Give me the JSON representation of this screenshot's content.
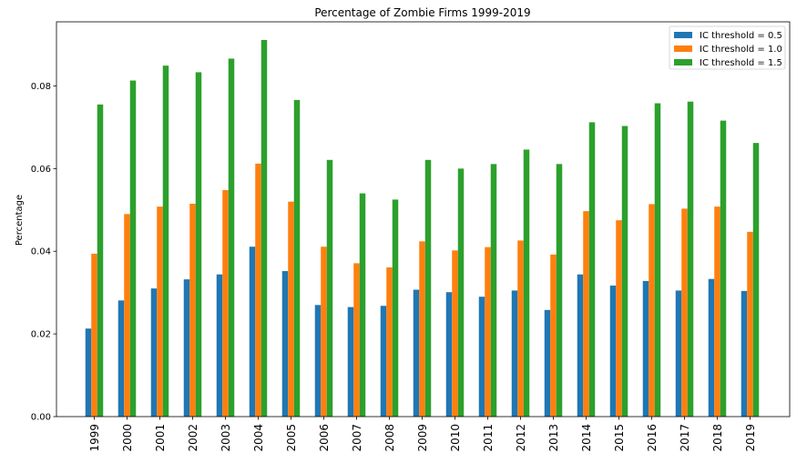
{
  "chart_data": {
    "type": "bar",
    "title": "Percentage of Zombie Firms 1999-2019",
    "xlabel": "",
    "ylabel": "Percentage",
    "ylim": [
      0,
      0.0955
    ],
    "yticks": [
      "0.00",
      "0.02",
      "0.04",
      "0.06",
      "0.08"
    ],
    "ytick_values": [
      0.0,
      0.02,
      0.04,
      0.06,
      0.08
    ],
    "grid": false,
    "legend_position": "top-right",
    "categories": [
      "1999",
      "2000",
      "2001",
      "2002",
      "2003",
      "2004",
      "2005",
      "2006",
      "2007",
      "2008",
      "2009",
      "2010",
      "2011",
      "2012",
      "2013",
      "2014",
      "2015",
      "2016",
      "2017",
      "2018",
      "2019"
    ],
    "series": [
      {
        "name": "IC threshold = 0.5",
        "color": "#1f77b4",
        "values": [
          0.0213,
          0.0281,
          0.031,
          0.0332,
          0.0344,
          0.0411,
          0.0352,
          0.027,
          0.0265,
          0.0268,
          0.0307,
          0.0301,
          0.029,
          0.0305,
          0.0258,
          0.0344,
          0.0317,
          0.0328,
          0.0305,
          0.0333,
          0.0304
        ]
      },
      {
        "name": "IC threshold = 1.0",
        "color": "#ff7f0e",
        "values": [
          0.0394,
          0.049,
          0.0508,
          0.0515,
          0.0548,
          0.0612,
          0.052,
          0.0411,
          0.0371,
          0.0361,
          0.0424,
          0.0402,
          0.041,
          0.0426,
          0.0392,
          0.0497,
          0.0475,
          0.0514,
          0.0503,
          0.0508,
          0.0447
        ]
      },
      {
        "name": "IC threshold = 1.5",
        "color": "#2ca02c",
        "values": [
          0.0755,
          0.0813,
          0.0849,
          0.0833,
          0.0866,
          0.0911,
          0.0766,
          0.0621,
          0.054,
          0.0525,
          0.0621,
          0.06,
          0.0611,
          0.0646,
          0.0611,
          0.0712,
          0.0703,
          0.0758,
          0.0762,
          0.0716,
          0.0662
        ]
      }
    ]
  }
}
